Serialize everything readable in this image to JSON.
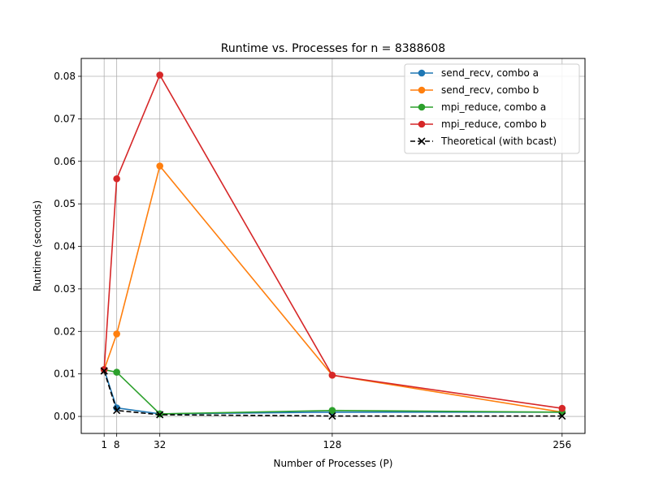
{
  "chart_data": {
    "type": "line",
    "title": "Runtime vs. Processes for n = 8388608",
    "xlabel": "Number of Processes (P)",
    "ylabel": "Runtime (seconds)",
    "x": [
      1,
      8,
      32,
      128,
      256
    ],
    "x_tick_labels": [
      "1",
      "8",
      "32",
      "128",
      "256"
    ],
    "y_ticks": [
      0.0,
      0.01,
      0.02,
      0.03,
      0.04,
      0.05,
      0.06,
      0.07,
      0.08
    ],
    "y_tick_labels": [
      "0.00",
      "0.01",
      "0.02",
      "0.03",
      "0.04",
      "0.05",
      "0.06",
      "0.07",
      "0.08"
    ],
    "xlim": [
      -11.75,
      268.75
    ],
    "ylim": [
      -0.004,
      0.0842
    ],
    "grid": true,
    "legend_position": "top-right",
    "series": [
      {
        "name": "send_recv, combo a",
        "color": "#1f77b4",
        "marker": "circle",
        "dashed": false,
        "values": [
          0.011,
          0.002,
          0.0006,
          0.001,
          0.001
        ]
      },
      {
        "name": "send_recv, combo b",
        "color": "#ff7f0e",
        "marker": "circle",
        "dashed": false,
        "values": [
          0.011,
          0.0194,
          0.0589,
          0.0097,
          0.001
        ]
      },
      {
        "name": "mpi_reduce, combo a",
        "color": "#2ca02c",
        "marker": "circle",
        "dashed": false,
        "values": [
          0.011,
          0.0104,
          0.0006,
          0.0014,
          0.001
        ]
      },
      {
        "name": "mpi_reduce, combo b",
        "color": "#d62728",
        "marker": "circle",
        "dashed": false,
        "values": [
          0.011,
          0.0559,
          0.0803,
          0.0097,
          0.0019
        ]
      },
      {
        "name": "Theoretical (with bcast)",
        "color": "#000000",
        "marker": "x",
        "dashed": true,
        "values": [
          0.0107,
          0.0014,
          0.0004,
          0.0001,
          0.0001
        ]
      }
    ]
  }
}
